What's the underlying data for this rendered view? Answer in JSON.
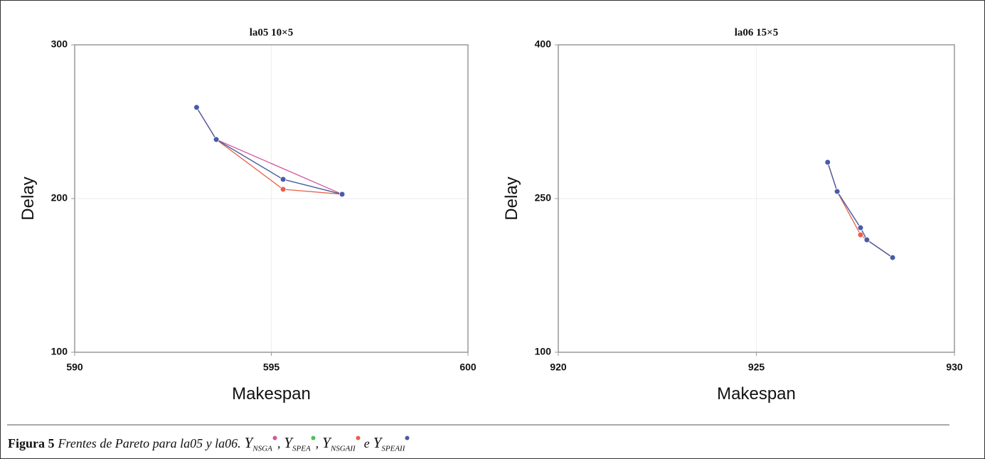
{
  "chart_data": [
    {
      "type": "line",
      "title": "la05 10×5",
      "x_label": "Makespan",
      "y_label": "Delay",
      "xlim": [
        590,
        600
      ],
      "xticks": [
        590,
        595,
        600
      ],
      "ylim": [
        100,
        300
      ],
      "yticks": [
        100,
        200,
        300
      ],
      "grid": true,
      "series": [
        {
          "name": "NSGA",
          "color": "#d4569b",
          "x": [
            593.1,
            593.6,
            596.8
          ],
          "values": [
            259.3,
            238.4,
            202.8
          ]
        },
        {
          "name": "SPEA",
          "color": "#4cbf5a",
          "x": [
            593.1,
            593.6,
            595.3,
            596.8
          ],
          "values": [
            259.3,
            238.4,
            212.5,
            202.8
          ]
        },
        {
          "name": "NSGAII",
          "color": "#e8604c",
          "x": [
            593.1,
            593.6,
            595.3,
            596.8
          ],
          "values": [
            259.3,
            238.4,
            206,
            202.8
          ]
        },
        {
          "name": "SPEAII",
          "color": "#4a5aa8",
          "x": [
            593.1,
            593.6,
            595.3,
            596.8
          ],
          "values": [
            259.3,
            238.4,
            212.5,
            202.8
          ]
        }
      ]
    },
    {
      "type": "line",
      "title": "la06 15×5",
      "x_label": "Makespan",
      "y_label": "Delay",
      "xlim": [
        920,
        930
      ],
      "xticks": [
        920,
        925,
        930
      ],
      "ylim": [
        100,
        400
      ],
      "yticks": [
        100,
        250,
        400
      ],
      "grid": true,
      "series": [
        {
          "color": "#d4569b",
          "x": [
            926.8,
            927.04,
            927.63,
            927.79,
            928.44
          ],
          "values": [
            285.4,
            256.9,
            221.5,
            209.7,
            192.4
          ]
        },
        {
          "color": "#4cbf5a",
          "x": [
            926.8,
            927.04,
            927.63,
            927.79,
            928.44
          ],
          "values": [
            285.4,
            256.9,
            221.5,
            209.7,
            192.4
          ]
        },
        {
          "color": "#e8604c",
          "x": [
            926.8,
            927.04,
            927.63,
            927.79,
            928.44
          ],
          "values": [
            285.4,
            256.9,
            214.6,
            209.7,
            192.4
          ]
        },
        {
          "color": "#4a5aa8",
          "x": [
            926.8,
            927.04,
            927.63,
            927.79,
            928.44
          ],
          "values": [
            285.4,
            256.9,
            221.5,
            209.7,
            192.4
          ]
        }
      ]
    }
  ],
  "caption": {
    "label": "Figura 5",
    "text": "Frentes de Pareto para la05 y la06.",
    "symbol": "Y",
    "joins": [
      ",",
      ",",
      "e"
    ]
  }
}
